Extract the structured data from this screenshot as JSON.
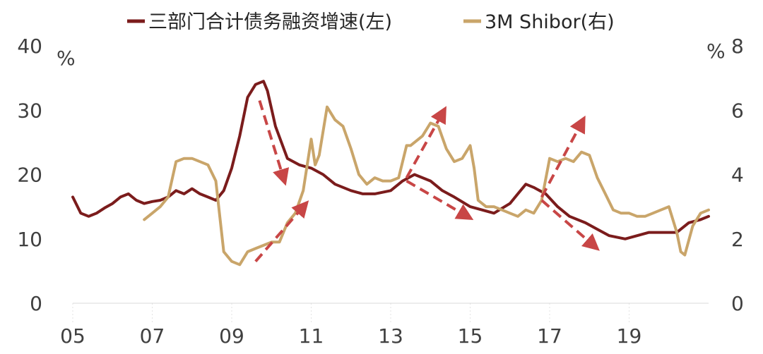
{
  "chart_data": {
    "type": "line",
    "title": "",
    "x_ticks": [
      "05",
      "07",
      "09",
      "11",
      "13",
      "15",
      "17",
      "19"
    ],
    "left_axis": {
      "unit": "%",
      "ylim": [
        0,
        40
      ],
      "ticks": [
        "0",
        "10",
        "20",
        "30",
        "40"
      ]
    },
    "right_axis": {
      "unit": "%",
      "ylim": [
        0,
        8
      ],
      "ticks": [
        "0",
        "2",
        "4",
        "6",
        "8"
      ]
    },
    "grid": false,
    "legend_position": "top",
    "series": [
      {
        "name": "三部门合计债务融资增速(左)",
        "axis": "left",
        "color": "#7B1C1C",
        "x": [
          2005.0,
          2005.2,
          2005.4,
          2005.6,
          2005.8,
          2006.0,
          2006.2,
          2006.4,
          2006.6,
          2006.8,
          2007.0,
          2007.2,
          2007.4,
          2007.6,
          2007.8,
          2008.0,
          2008.2,
          2008.4,
          2008.6,
          2008.8,
          2009.0,
          2009.2,
          2009.4,
          2009.6,
          2009.8,
          2009.9,
          2010.1,
          2010.4,
          2010.7,
          2011.0,
          2011.3,
          2011.6,
          2012.0,
          2012.3,
          2012.6,
          2013.0,
          2013.3,
          2013.6,
          2014.0,
          2014.3,
          2014.6,
          2015.0,
          2015.3,
          2015.6,
          2016.0,
          2016.2,
          2016.4,
          2016.6,
          2016.9,
          2017.2,
          2017.5,
          2017.9,
          2018.2,
          2018.5,
          2018.9,
          2019.2,
          2019.5,
          2019.9,
          2020.2,
          2020.5,
          2020.8,
          2021.0
        ],
        "y": [
          16.5,
          14.0,
          13.5,
          14.0,
          14.8,
          15.5,
          16.5,
          17.0,
          16.0,
          15.5,
          15.8,
          16.0,
          16.5,
          17.5,
          17.0,
          17.8,
          17.0,
          16.5,
          16.0,
          17.5,
          21.0,
          26.0,
          32.0,
          34.0,
          34.5,
          33.0,
          27.5,
          22.5,
          21.5,
          21.0,
          20.0,
          18.5,
          17.5,
          17.0,
          17.0,
          17.5,
          19.0,
          20.0,
          19.0,
          17.5,
          16.5,
          15.0,
          14.5,
          14.0,
          15.5,
          17.0,
          18.5,
          18.0,
          17.0,
          15.0,
          13.5,
          12.5,
          11.5,
          10.5,
          10.0,
          10.5,
          11.0,
          11.0,
          11.0,
          12.5,
          13.0,
          13.5
        ]
      },
      {
        "name": "3M Shibor(右)",
        "axis": "right",
        "color": "#C9A56A",
        "x": [
          2006.8,
          2007.0,
          2007.2,
          2007.4,
          2007.6,
          2007.8,
          2008.0,
          2008.2,
          2008.4,
          2008.6,
          2008.8,
          2009.0,
          2009.2,
          2009.4,
          2009.6,
          2009.8,
          2010.0,
          2010.2,
          2010.4,
          2010.6,
          2010.8,
          2011.0,
          2011.1,
          2011.2,
          2011.4,
          2011.6,
          2011.8,
          2012.0,
          2012.2,
          2012.4,
          2012.6,
          2012.8,
          2013.0,
          2013.2,
          2013.3,
          2013.4,
          2013.5,
          2013.6,
          2013.8,
          2014.0,
          2014.2,
          2014.4,
          2014.6,
          2014.8,
          2015.0,
          2015.1,
          2015.2,
          2015.4,
          2015.6,
          2015.8,
          2016.0,
          2016.2,
          2016.4,
          2016.6,
          2016.8,
          2017.0,
          2017.2,
          2017.4,
          2017.6,
          2017.8,
          2018.0,
          2018.2,
          2018.4,
          2018.6,
          2018.8,
          2019.0,
          2019.2,
          2019.4,
          2019.6,
          2019.8,
          2020.0,
          2020.2,
          2020.3,
          2020.4,
          2020.6,
          2020.8,
          2021.0
        ],
        "y": [
          2.6,
          2.8,
          3.0,
          3.3,
          4.4,
          4.5,
          4.5,
          4.4,
          4.3,
          3.8,
          1.6,
          1.3,
          1.2,
          1.6,
          1.7,
          1.8,
          1.9,
          1.9,
          2.5,
          2.8,
          3.5,
          5.1,
          4.3,
          4.6,
          6.1,
          5.7,
          5.5,
          4.8,
          4.0,
          3.7,
          3.9,
          3.8,
          3.8,
          3.9,
          4.4,
          4.9,
          4.9,
          5.0,
          5.2,
          5.6,
          5.5,
          4.8,
          4.4,
          4.5,
          4.9,
          4.2,
          3.2,
          3.0,
          3.0,
          2.9,
          2.8,
          2.7,
          2.9,
          2.8,
          3.2,
          4.5,
          4.4,
          4.5,
          4.4,
          4.7,
          4.6,
          3.9,
          3.4,
          2.9,
          2.8,
          2.8,
          2.7,
          2.7,
          2.8,
          2.9,
          3.0,
          2.2,
          1.6,
          1.5,
          2.4,
          2.8,
          2.9
        ]
      }
    ],
    "annotations": [
      {
        "type": "arrow",
        "from": [
          2009.7,
          31.5
        ],
        "to": [
          2010.3,
          19.5
        ],
        "axis": "left"
      },
      {
        "type": "arrow",
        "from": [
          2009.6,
          1.3
        ],
        "to": [
          2010.8,
          3.0
        ],
        "axis": "right"
      },
      {
        "type": "arrow",
        "from": [
          2013.4,
          3.9
        ],
        "to": [
          2014.3,
          5.9
        ],
        "axis": "right"
      },
      {
        "type": "arrow",
        "from": [
          2013.4,
          19.0
        ],
        "to": [
          2014.9,
          13.6
        ],
        "axis": "left"
      },
      {
        "type": "arrow",
        "from": [
          2016.8,
          3.3
        ],
        "to": [
          2017.8,
          5.6
        ],
        "axis": "right"
      },
      {
        "type": "arrow",
        "from": [
          2016.8,
          16.0
        ],
        "to": [
          2018.1,
          9.0
        ],
        "axis": "left"
      }
    ]
  },
  "colors": {
    "arrow": "#C84646",
    "axis_text": "#404040",
    "axis_line": "#D9D9D9"
  }
}
